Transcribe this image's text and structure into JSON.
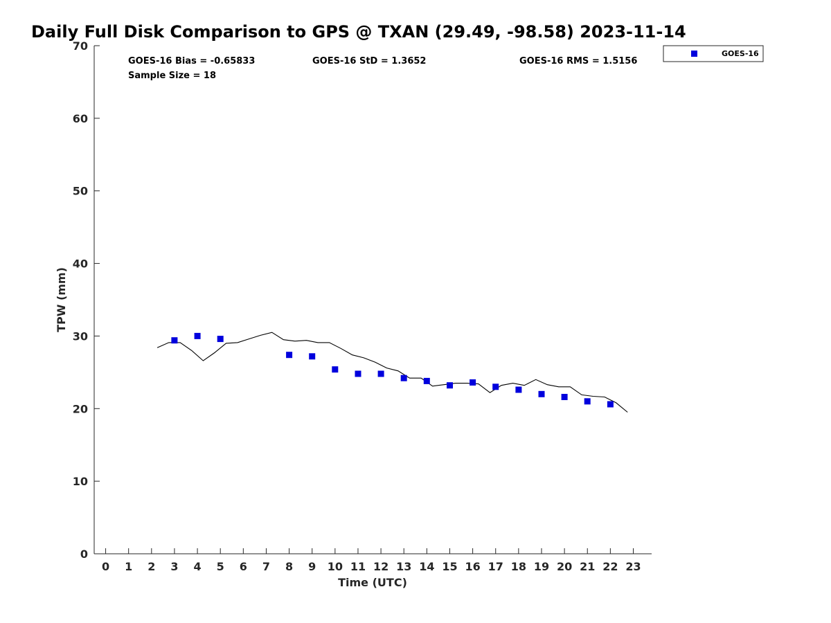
{
  "chart_data": {
    "type": "scatter",
    "title": "Daily Full Disk Comparison to GPS @ TXAN (29.49, -98.58) 2023-11-14",
    "xlabel": "Time (UTC)",
    "ylabel": "TPW (mm)",
    "xlim": [
      -0.5,
      23.8
    ],
    "ylim": [
      0,
      70
    ],
    "xticks": [
      0,
      1,
      2,
      3,
      4,
      5,
      6,
      7,
      8,
      9,
      10,
      11,
      12,
      13,
      14,
      15,
      16,
      17,
      18,
      19,
      20,
      21,
      22,
      23
    ],
    "yticks": [
      0,
      10,
      20,
      30,
      40,
      50,
      60,
      70
    ],
    "grid": false,
    "legend_position": "top-right-outside",
    "annotations": {
      "bias": "GOES-16 Bias = -0.65833",
      "std": "GOES-16 StD = 1.3652",
      "rms": "GOES-16 RMS = 1.5156",
      "sample_size": "Sample Size = 18"
    },
    "series": [
      {
        "name": "GOES-16",
        "type": "scatter",
        "marker": "square",
        "color": "#0000DD",
        "x": [
          3,
          4,
          5,
          8,
          9,
          10,
          11,
          12,
          13,
          14,
          15,
          16,
          17,
          18,
          19,
          20,
          21,
          22
        ],
        "y": [
          29.4,
          30.0,
          29.6,
          27.4,
          27.2,
          25.4,
          24.8,
          24.8,
          24.2,
          23.8,
          23.2,
          23.6,
          23.0,
          22.6,
          22.0,
          21.6,
          21.0,
          20.6
        ]
      },
      {
        "name": "",
        "type": "line",
        "color": "#000000",
        "x": [
          2.25,
          2.75,
          3.25,
          3.75,
          4.25,
          4.75,
          5.25,
          5.75,
          6.25,
          6.75,
          7.25,
          7.75,
          8.25,
          8.75,
          9.25,
          9.75,
          10.25,
          10.75,
          11.25,
          11.75,
          12.25,
          12.75,
          13.25,
          13.75,
          14.25,
          14.75,
          15.25,
          15.75,
          16.25,
          16.75,
          17.25,
          17.75,
          18.25,
          18.75,
          19.25,
          19.75,
          20.25,
          20.75,
          21.25,
          21.75,
          22.25,
          22.75
        ],
        "y": [
          28.4,
          29.1,
          29.1,
          28.0,
          26.6,
          27.7,
          29.0,
          29.1,
          29.6,
          30.1,
          30.5,
          29.5,
          29.3,
          29.4,
          29.1,
          29.1,
          28.3,
          27.4,
          27.0,
          26.4,
          25.6,
          25.2,
          24.2,
          24.2,
          23.1,
          23.3,
          23.5,
          23.5,
          23.4,
          22.2,
          23.2,
          23.5,
          23.2,
          24.0,
          23.3,
          23.0,
          23.0,
          21.9,
          21.7,
          21.6,
          20.8,
          19.5
        ]
      }
    ]
  }
}
